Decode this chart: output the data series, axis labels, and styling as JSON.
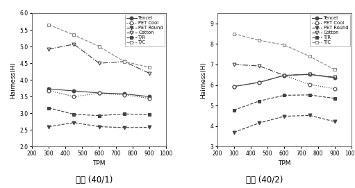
{
  "tpm": [
    300,
    450,
    600,
    750,
    900
  ],
  "left": {
    "ylabel": "Hairness(H)",
    "xlabel": "TPM",
    "ylim": [
      2.0,
      6.0
    ],
    "yticks": [
      2.0,
      2.5,
      3.0,
      3.5,
      4.0,
      4.5,
      5.0,
      5.5,
      6.0
    ],
    "ytick_labels": [
      "2.0",
      "2.5",
      "3.0",
      "3.5",
      "4.0",
      "4.5",
      "5.0",
      "5.5",
      "6.0"
    ],
    "xlim": [
      200,
      1000
    ],
    "xticks": [
      200,
      300,
      400,
      500,
      600,
      700,
      800,
      900,
      1000
    ],
    "xtick_labels": [
      "200",
      "300",
      "400",
      "500",
      "600",
      "700",
      "800",
      "900",
      "1000"
    ],
    "series": {
      "Tencel": {
        "values": [
          3.73,
          3.67,
          3.61,
          3.58,
          3.5
        ],
        "marker": "o",
        "linestyle": "-",
        "color": "#444444",
        "mfc": "#444444"
      },
      "PET Cool": {
        "values": [
          3.68,
          3.5,
          3.6,
          3.55,
          3.45
        ],
        "marker": "o",
        "linestyle": ":",
        "color": "#444444",
        "mfc": "white"
      },
      "PET Round": {
        "values": [
          2.6,
          2.72,
          2.6,
          2.57,
          2.58
        ],
        "marker": "v",
        "linestyle": "--",
        "color": "#444444",
        "mfc": "#444444"
      },
      "Cotton": {
        "values": [
          4.92,
          5.07,
          4.5,
          4.55,
          4.2
        ],
        "marker": "v",
        "linestyle": "-.",
        "color": "#444444",
        "mfc": "white"
      },
      "T/R": {
        "values": [
          3.16,
          2.97,
          2.93,
          2.98,
          2.96
        ],
        "marker": "s",
        "linestyle": "--",
        "color": "#444444",
        "mfc": "#444444"
      },
      "T/C": {
        "values": [
          5.65,
          5.35,
          5.0,
          4.55,
          4.38
        ],
        "marker": "s",
        "linestyle": "--",
        "color": "#888888",
        "mfc": "white"
      }
    }
  },
  "right": {
    "ylabel": "Hairness(H)",
    "xlabel": "TPM",
    "ylim": [
      3.0,
      9.5
    ],
    "yticks": [
      3,
      4,
      5,
      6,
      7,
      8,
      9
    ],
    "ytick_labels": [
      "3",
      "4",
      "5",
      "6",
      "7",
      "8",
      "9"
    ],
    "xlim": [
      200,
      1000
    ],
    "xticks": [
      200,
      300,
      400,
      500,
      600,
      700,
      800,
      900,
      1000
    ],
    "xtick_labels": [
      "200",
      "300",
      "400",
      "500",
      "600",
      "700",
      "800",
      "900",
      "1000"
    ],
    "series": {
      "Tencel": {
        "values": [
          5.93,
          6.13,
          6.47,
          6.52,
          6.35
        ],
        "marker": "o",
        "linestyle": "-",
        "color": "#444444",
        "mfc": "#444444"
      },
      "PET Cool": {
        "values": [
          5.93,
          6.13,
          6.47,
          6.03,
          5.82
        ],
        "marker": "o",
        "linestyle": ":",
        "color": "#444444",
        "mfc": "white"
      },
      "PET Round": {
        "values": [
          3.7,
          4.15,
          4.48,
          4.52,
          4.22
        ],
        "marker": "v",
        "linestyle": "--",
        "color": "#444444",
        "mfc": "#444444"
      },
      "Cotton": {
        "values": [
          7.0,
          6.93,
          6.47,
          6.52,
          6.38
        ],
        "marker": "v",
        "linestyle": "-.",
        "color": "#444444",
        "mfc": "white"
      },
      "T/R": {
        "values": [
          4.78,
          5.22,
          5.5,
          5.52,
          5.35
        ],
        "marker": "s",
        "linestyle": "--",
        "color": "#444444",
        "mfc": "#444444"
      },
      "T/C": {
        "values": [
          8.5,
          8.18,
          7.95,
          7.4,
          6.75
        ],
        "marker": "s",
        "linestyle": "--",
        "color": "#888888",
        "mfc": "white"
      }
    }
  },
  "legend_order": [
    "Tencel",
    "PET Cool",
    "PET Round",
    "Cotton",
    "T/R",
    "T/C"
  ],
  "label_left": "단사 (40/1)",
  "label_right": "합사 (40/2)",
  "background_color": "#ffffff"
}
